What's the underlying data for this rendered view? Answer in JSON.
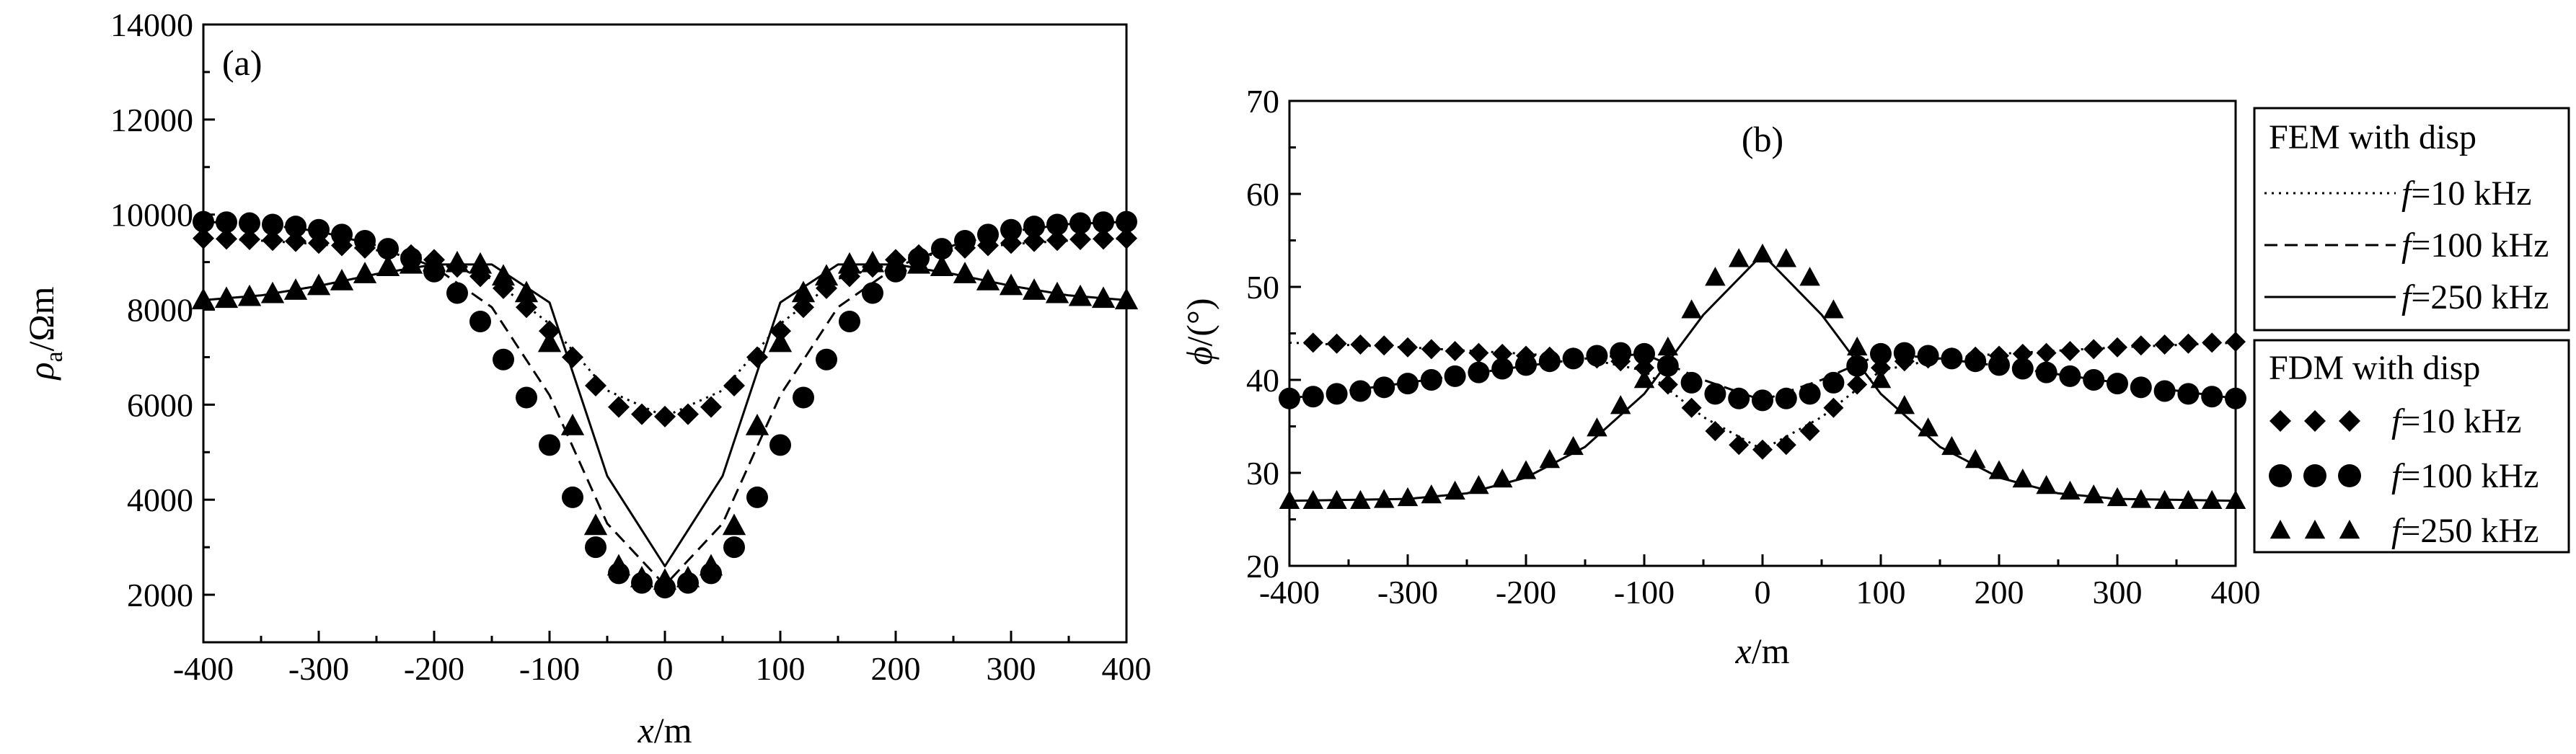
{
  "chart_data": [
    {
      "type": "line",
      "panel_label": "(a)",
      "xlabel": "x/m",
      "ylabel": "ρa/Ωm",
      "xlim": [
        -400,
        400
      ],
      "ylim": [
        1000,
        14000
      ],
      "x_ticks": [
        -400,
        -300,
        -200,
        -100,
        0,
        100,
        200,
        300,
        400
      ],
      "y_ticks": [
        2000,
        4000,
        6000,
        8000,
        10000,
        12000,
        14000
      ],
      "grid": false,
      "series": [
        {
          "name": "f=10 kHz",
          "method": "FEM with disp",
          "style": "dotted",
          "x": [
            -400,
            -350,
            -300,
            -250,
            -200,
            -150,
            -100,
            -50,
            0,
            50,
            100,
            150,
            200,
            250,
            300,
            350,
            400
          ],
          "y": [
            9500,
            9450,
            9380,
            9250,
            9000,
            8650,
            7700,
            6300,
            5750,
            6300,
            7700,
            8650,
            9000,
            9250,
            9380,
            9450,
            9500
          ]
        },
        {
          "name": "f=100 kHz",
          "method": "FEM with disp",
          "style": "dashed",
          "x": [
            -400,
            -350,
            -300,
            -250,
            -200,
            -150,
            -100,
            -50,
            0,
            50,
            100,
            150,
            200,
            250,
            300,
            350,
            400
          ],
          "y": [
            9850,
            9800,
            9650,
            9350,
            8900,
            8050,
            6200,
            3500,
            2200,
            3500,
            6200,
            8050,
            8900,
            9350,
            9650,
            9800,
            9850
          ]
        },
        {
          "name": "f=250 kHz",
          "method": "FEM with disp",
          "style": "solid",
          "x": [
            -400,
            -350,
            -300,
            -250,
            -200,
            -150,
            -100,
            -50,
            0,
            50,
            100,
            150,
            200,
            250,
            300,
            350,
            400
          ],
          "y": [
            8200,
            8300,
            8500,
            8750,
            8950,
            8950,
            8150,
            4500,
            2600,
            4500,
            8150,
            8950,
            8950,
            8750,
            8500,
            8300,
            8200
          ]
        },
        {
          "name": "f=10 kHz",
          "method": "FDM with disp",
          "marker": "diamond",
          "x": [
            -400,
            -380,
            -360,
            -340,
            -320,
            -300,
            -280,
            -260,
            -240,
            -220,
            -200,
            -180,
            -160,
            -140,
            -120,
            -100,
            -80,
            -60,
            -40,
            -20,
            0,
            20,
            40,
            60,
            80,
            100,
            120,
            140,
            160,
            180,
            200,
            220,
            240,
            260,
            280,
            300,
            320,
            340,
            360,
            380,
            400
          ],
          "y": [
            9500,
            9490,
            9480,
            9460,
            9440,
            9400,
            9350,
            9300,
            9230,
            9150,
            9050,
            8900,
            8700,
            8450,
            8050,
            7550,
            7000,
            6400,
            5950,
            5800,
            5750,
            5800,
            5950,
            6400,
            7000,
            7550,
            8050,
            8450,
            8700,
            8900,
            9050,
            9150,
            9230,
            9300,
            9350,
            9400,
            9440,
            9460,
            9480,
            9490,
            9500
          ]
        },
        {
          "name": "f=100 kHz",
          "method": "FDM with disp",
          "marker": "circle",
          "x": [
            -400,
            -380,
            -360,
            -340,
            -320,
            -300,
            -280,
            -260,
            -240,
            -220,
            -200,
            -180,
            -160,
            -140,
            -120,
            -100,
            -80,
            -60,
            -40,
            -20,
            0,
            20,
            40,
            60,
            80,
            100,
            120,
            140,
            160,
            180,
            200,
            220,
            240,
            260,
            280,
            300,
            320,
            340,
            360,
            380,
            400
          ],
          "y": [
            9850,
            9840,
            9820,
            9790,
            9750,
            9680,
            9580,
            9450,
            9280,
            9080,
            8800,
            8350,
            7750,
            6950,
            6150,
            5150,
            4050,
            3000,
            2450,
            2250,
            2150,
            2250,
            2450,
            3000,
            4050,
            5150,
            6150,
            6950,
            7750,
            8350,
            8800,
            9080,
            9280,
            9450,
            9580,
            9680,
            9750,
            9790,
            9820,
            9840,
            9850
          ]
        },
        {
          "name": "f=250 kHz",
          "method": "FDM with disp",
          "marker": "triangle",
          "x": [
            -400,
            -380,
            -360,
            -340,
            -320,
            -300,
            -280,
            -260,
            -240,
            -220,
            -200,
            -180,
            -160,
            -140,
            -120,
            -100,
            -80,
            -60,
            -40,
            -20,
            0,
            20,
            40,
            60,
            80,
            100,
            120,
            140,
            160,
            180,
            200,
            220,
            240,
            260,
            280,
            300,
            320,
            340,
            360,
            380,
            400
          ],
          "y": [
            8200,
            8230,
            8270,
            8330,
            8400,
            8500,
            8600,
            8750,
            8900,
            8950,
            9000,
            8980,
            8950,
            8700,
            8350,
            7300,
            5550,
            3450,
            2600,
            2350,
            2300,
            2350,
            2600,
            3450,
            5550,
            7300,
            8350,
            8700,
            8950,
            8980,
            9000,
            8950,
            8900,
            8750,
            8600,
            8500,
            8400,
            8330,
            8270,
            8230,
            8200
          ]
        }
      ]
    },
    {
      "type": "line",
      "panel_label": "(b)",
      "xlabel": "x/m",
      "ylabel": "ϕ/(°)",
      "xlim": [
        -400,
        400
      ],
      "ylim": [
        20,
        70
      ],
      "x_ticks": [
        -400,
        -300,
        -200,
        -100,
        0,
        100,
        200,
        300,
        400
      ],
      "y_ticks": [
        20,
        30,
        40,
        50,
        60,
        70
      ],
      "grid": false,
      "legend_position": "right",
      "series": [
        {
          "name": "f=10 kHz",
          "method": "FEM with disp",
          "style": "dotted",
          "x": [
            -400,
            -300,
            -200,
            -150,
            -100,
            -50,
            0,
            50,
            100,
            150,
            200,
            300,
            400
          ],
          "y": [
            44,
            43.5,
            42.8,
            42.3,
            41,
            36,
            32.5,
            36,
            41,
            42.3,
            42.8,
            43.5,
            44
          ]
        },
        {
          "name": "f=100 kHz",
          "method": "FEM with disp",
          "style": "dashed",
          "x": [
            -400,
            -300,
            -200,
            -150,
            -100,
            -50,
            0,
            50,
            100,
            150,
            200,
            300,
            400
          ],
          "y": [
            38,
            39.7,
            41.5,
            42.3,
            42.8,
            40,
            37.8,
            40,
            42.8,
            42.3,
            41.5,
            39.7,
            38
          ]
        },
        {
          "name": "f=250 kHz",
          "method": "FEM with disp",
          "style": "solid",
          "x": [
            -400,
            -300,
            -250,
            -200,
            -150,
            -100,
            -50,
            0,
            50,
            100,
            150,
            200,
            250,
            300,
            400
          ],
          "y": [
            27,
            27.2,
            27.8,
            29.5,
            32.8,
            38.5,
            47,
            53.5,
            47,
            38.5,
            32.8,
            29.5,
            27.8,
            27.2,
            27
          ]
        },
        {
          "name": "f=10 kHz",
          "method": "FDM with disp",
          "marker": "diamond",
          "x": [
            -380,
            -360,
            -340,
            -320,
            -300,
            -280,
            -260,
            -240,
            -220,
            -200,
            -180,
            -160,
            -140,
            -120,
            -100,
            -80,
            -60,
            -40,
            -20,
            0,
            20,
            40,
            60,
            80,
            100,
            120,
            140,
            160,
            180,
            200,
            220,
            240,
            260,
            280,
            300,
            320,
            340,
            360,
            380,
            400
          ],
          "y": [
            44,
            43.9,
            43.8,
            43.7,
            43.5,
            43.3,
            43.1,
            42.9,
            42.8,
            42.6,
            42.5,
            42.4,
            42.3,
            42,
            41.3,
            39.5,
            37,
            34.5,
            33,
            32.5,
            33,
            34.5,
            37,
            39.5,
            41.3,
            42,
            42.3,
            42.4,
            42.5,
            42.6,
            42.8,
            42.9,
            43.1,
            43.3,
            43.5,
            43.7,
            43.8,
            43.9,
            44,
            44.1
          ]
        },
        {
          "name": "f=100 kHz",
          "method": "FDM with disp",
          "marker": "circle",
          "x": [
            -400,
            -380,
            -360,
            -340,
            -320,
            -300,
            -280,
            -260,
            -240,
            -220,
            -200,
            -180,
            -160,
            -140,
            -120,
            -100,
            -80,
            -60,
            -40,
            -20,
            0,
            20,
            40,
            60,
            80,
            100,
            120,
            140,
            160,
            180,
            200,
            220,
            240,
            260,
            280,
            300,
            320,
            340,
            360,
            380,
            400
          ],
          "y": [
            38,
            38.2,
            38.5,
            38.8,
            39.2,
            39.6,
            40,
            40.4,
            40.8,
            41.2,
            41.6,
            42,
            42.3,
            42.6,
            42.9,
            42.8,
            41.5,
            39.7,
            38.5,
            38,
            37.8,
            38,
            38.5,
            39.7,
            41.5,
            42.8,
            42.9,
            42.6,
            42.3,
            42,
            41.6,
            41.2,
            40.8,
            40.4,
            40,
            39.6,
            39.2,
            38.8,
            38.5,
            38.2,
            38
          ]
        },
        {
          "name": "f=250 kHz",
          "method": "FDM with disp",
          "marker": "triangle",
          "x": [
            -400,
            -380,
            -360,
            -340,
            -320,
            -300,
            -280,
            -260,
            -240,
            -220,
            -200,
            -180,
            -160,
            -140,
            -120,
            -100,
            -80,
            -60,
            -40,
            -20,
            0,
            20,
            40,
            60,
            80,
            100,
            120,
            140,
            160,
            180,
            200,
            220,
            240,
            260,
            280,
            300,
            320,
            340,
            360,
            380,
            400
          ],
          "y": [
            27,
            27,
            27,
            27,
            27.1,
            27.3,
            27.6,
            28,
            28.6,
            29.3,
            30.2,
            31.4,
            32.8,
            34.8,
            37.2,
            40,
            43.5,
            47.5,
            51,
            53,
            53.5,
            53,
            51,
            47.5,
            43.5,
            40,
            37.2,
            34.8,
            32.8,
            31.4,
            30.2,
            29.3,
            28.6,
            28,
            27.6,
            27.3,
            27.1,
            27,
            27,
            27,
            27
          ]
        }
      ]
    }
  ],
  "legend": {
    "fem_title": "FEM with disp",
    "fdm_title": "FDM with disp",
    "items": [
      {
        "italic": "f",
        "rest": "=10 kHz"
      },
      {
        "italic": "f",
        "rest": "=100 kHz"
      },
      {
        "italic": "f",
        "rest": "=250 kHz"
      }
    ]
  },
  "labels": {
    "a_x_italic": "x",
    "a_x_rest": "/m",
    "a_y_sym": "ρ",
    "a_y_sub": "a",
    "a_y_rest": "/Ωm",
    "b_x_italic": "x",
    "b_x_rest": "/m",
    "b_y_sym": "ϕ",
    "b_y_rest": "/(°)"
  }
}
